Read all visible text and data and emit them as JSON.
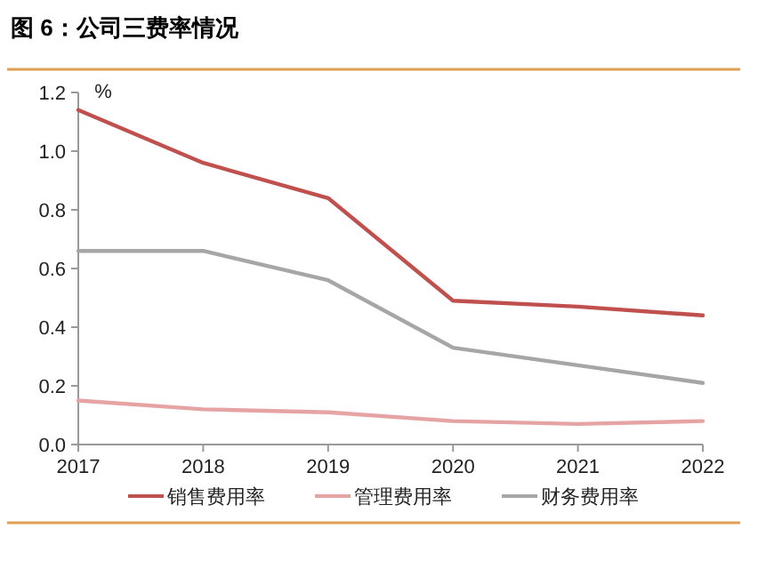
{
  "chart_data": {
    "type": "line",
    "title": "图 6：公司三费率情况",
    "ylabel": "%",
    "categories": [
      "2017",
      "2018",
      "2019",
      "2020",
      "2021",
      "2022"
    ],
    "ylim": [
      0,
      1.2
    ],
    "yticks": [
      {
        "value": 0,
        "label": "0.0"
      },
      {
        "value": 0.2,
        "label": "0.2"
      },
      {
        "value": 0.4,
        "label": "0.4"
      },
      {
        "value": 0.6,
        "label": "0.6"
      },
      {
        "value": 0.8,
        "label": "0.8"
      },
      {
        "value": 1,
        "label": "1.0"
      },
      {
        "value": 1.2,
        "label": "1.2"
      }
    ],
    "grid": false,
    "legend": "bottom",
    "marker": "none",
    "line_style": "solid",
    "series": [
      {
        "name": "销售费用率",
        "color": "#c0504d",
        "values": [
          1.14,
          0.96,
          0.84,
          0.49,
          0.47,
          0.44
        ]
      },
      {
        "name": "管理费用率",
        "color": "#e6a3a3",
        "values": [
          0.15,
          0.12,
          0.11,
          0.08,
          0.07,
          0.08
        ]
      },
      {
        "name": "财务费用率",
        "color": "#a6a6a6",
        "values": [
          0.66,
          0.66,
          0.56,
          0.33,
          0.27,
          0.21
        ]
      }
    ]
  }
}
